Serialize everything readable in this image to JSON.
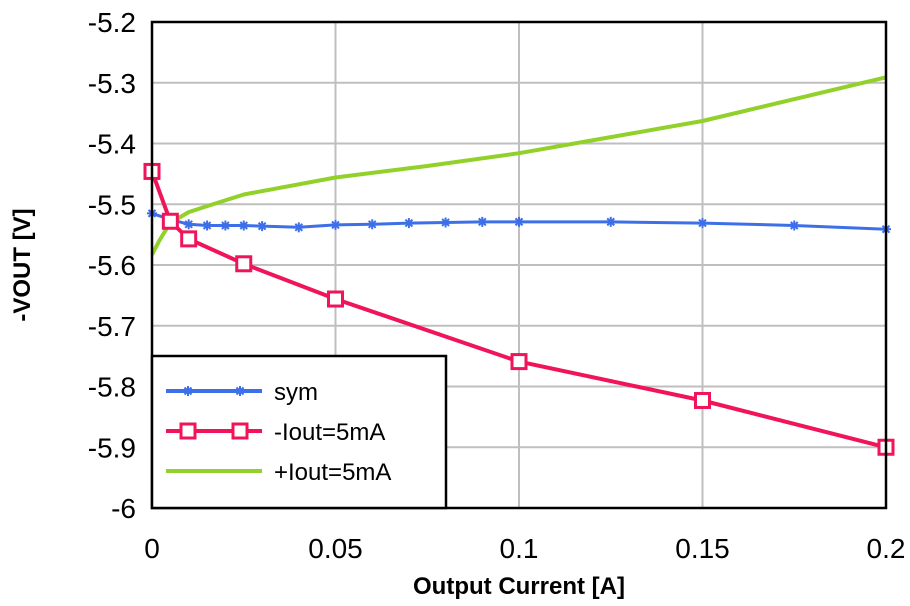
{
  "chart_data": {
    "type": "line",
    "title": "",
    "xlabel": "Output Current [A]",
    "ylabel": "-VOUT [V]",
    "xlim": [
      0,
      0.2
    ],
    "ylim": [
      -6,
      -5.2
    ],
    "x_ticks": [
      "0",
      "0.05",
      "0.1",
      "0.15",
      "0.2"
    ],
    "y_ticks": [
      "-5.2",
      "-5.3",
      "-5.4",
      "-5.5",
      "-5.6",
      "-5.7",
      "-5.8",
      "-5.9",
      "-6"
    ],
    "grid": true,
    "legend_position": "bottom-left",
    "series": [
      {
        "name": "sym",
        "color": "#3D6FE8",
        "marker": "asterisk",
        "x": [
          0,
          0.005,
          0.01,
          0.015,
          0.02,
          0.025,
          0.03,
          0.04,
          0.05,
          0.06,
          0.07,
          0.08,
          0.09,
          0.1,
          0.125,
          0.15,
          0.175,
          0.2
        ],
        "y": [
          -5.515,
          -5.525,
          -5.533,
          -5.535,
          -5.535,
          -5.535,
          -5.536,
          -5.538,
          -5.534,
          -5.533,
          -5.531,
          -5.53,
          -5.529,
          -5.529,
          -5.529,
          -5.531,
          -5.535,
          -5.541
        ]
      },
      {
        "name": "-Iout=5mA",
        "color": "#F0145A",
        "marker": "square",
        "x": [
          0,
          0.005,
          0.01,
          0.025,
          0.05,
          0.1,
          0.15,
          0.2
        ],
        "y": [
          -5.446,
          -5.528,
          -5.557,
          -5.598,
          -5.656,
          -5.759,
          -5.823,
          -5.9
        ]
      },
      {
        "name": "+Iout=5mA",
        "color": "#92D02A",
        "marker": "none",
        "x": [
          0,
          0.002,
          0.004,
          0.006,
          0.008,
          0.01,
          0.015,
          0.025,
          0.05,
          0.075,
          0.1,
          0.15,
          0.2
        ],
        "y": [
          -5.583,
          -5.56,
          -5.54,
          -5.527,
          -5.52,
          -5.513,
          -5.503,
          -5.484,
          -5.456,
          -5.437,
          -5.416,
          -5.363,
          -5.291
        ]
      }
    ]
  }
}
